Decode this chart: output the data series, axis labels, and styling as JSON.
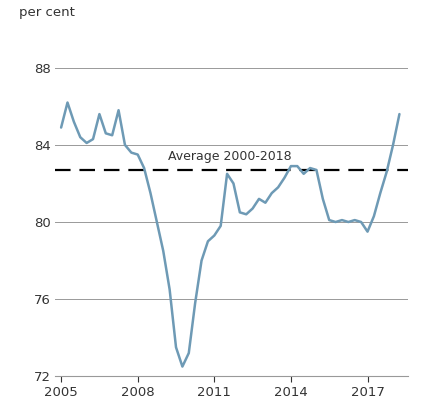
{
  "ylabel": "per cent",
  "average_label": "Average 2000-2018",
  "average_value": 82.7,
  "line_color": "#6e9ab5",
  "average_line_color": "#000000",
  "background_color": "#ffffff",
  "xlim": [
    2004.75,
    2018.6
  ],
  "ylim": [
    72,
    90
  ],
  "yticks": [
    72,
    76,
    80,
    84,
    88
  ],
  "xticks": [
    2005,
    2008,
    2011,
    2014,
    2017
  ],
  "data": {
    "years": [
      2005.0,
      2005.25,
      2005.5,
      2005.75,
      2006.0,
      2006.25,
      2006.5,
      2006.75,
      2007.0,
      2007.25,
      2007.5,
      2007.75,
      2008.0,
      2008.25,
      2008.5,
      2008.75,
      2009.0,
      2009.25,
      2009.5,
      2009.75,
      2010.0,
      2010.25,
      2010.5,
      2010.75,
      2011.0,
      2011.25,
      2011.5,
      2011.75,
      2012.0,
      2012.25,
      2012.5,
      2012.75,
      2013.0,
      2013.25,
      2013.5,
      2013.75,
      2014.0,
      2014.25,
      2014.5,
      2014.75,
      2015.0,
      2015.25,
      2015.5,
      2015.75,
      2016.0,
      2016.25,
      2016.5,
      2016.75,
      2017.0,
      2017.25,
      2017.5,
      2017.75,
      2018.0,
      2018.25
    ],
    "values": [
      84.9,
      86.2,
      85.2,
      84.4,
      84.1,
      84.3,
      85.6,
      84.6,
      84.5,
      85.8,
      84.0,
      83.6,
      83.5,
      82.8,
      81.5,
      80.0,
      78.5,
      76.5,
      73.5,
      72.5,
      73.2,
      75.8,
      78.0,
      79.0,
      79.3,
      79.8,
      82.5,
      82.0,
      80.5,
      80.4,
      80.7,
      81.2,
      81.0,
      81.5,
      81.8,
      82.3,
      82.9,
      82.9,
      82.5,
      82.8,
      82.7,
      81.2,
      80.1,
      80.0,
      80.1,
      80.0,
      80.1,
      80.0,
      79.5,
      80.3,
      81.5,
      82.6,
      84.0,
      85.6
    ]
  }
}
